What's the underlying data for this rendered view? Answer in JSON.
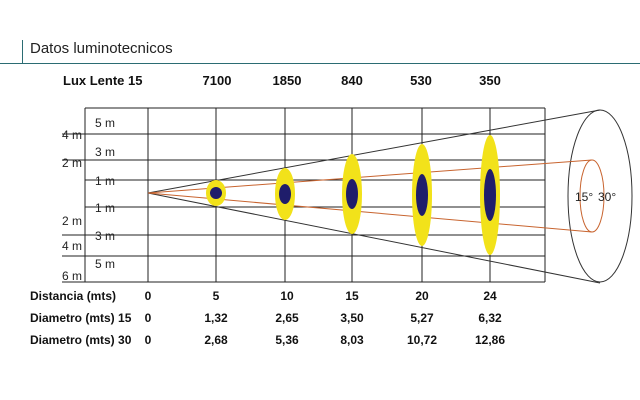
{
  "title": "Datos luminotecnicos",
  "lux": {
    "label": "Lux  Lente 15",
    "values": [
      "7100",
      "1850",
      "840",
      "530",
      "350"
    ]
  },
  "left_axis": {
    "outer_labels": [
      "4 m",
      "2 m",
      "2 m",
      "4 m",
      "6 m"
    ],
    "inner_labels": [
      "5 m",
      "3 m",
      "1 m",
      "1 m",
      "3 m",
      "5 m"
    ]
  },
  "cone_angles": [
    "15°",
    "30°"
  ],
  "distancia": {
    "label": "Distancia (mts)",
    "values": [
      "0",
      "5",
      "10",
      "15",
      "20",
      "24"
    ]
  },
  "diametro15": {
    "label": "Diametro (mts) 15",
    "values": [
      "0",
      "1,32",
      "2,65",
      "3,50",
      "5,27",
      "6,32"
    ]
  },
  "diametro30": {
    "label": "Diametro (mts) 30",
    "values": [
      "0",
      "2,68",
      "5,36",
      "8,03",
      "10,72",
      "12,86"
    ]
  },
  "colors": {
    "accent_line": "#2b6c73",
    "beam_fill": "#f2e21a",
    "beam_core": "#1f1d6b",
    "inner_cone": "#c8642f",
    "grid": "#222222"
  }
}
